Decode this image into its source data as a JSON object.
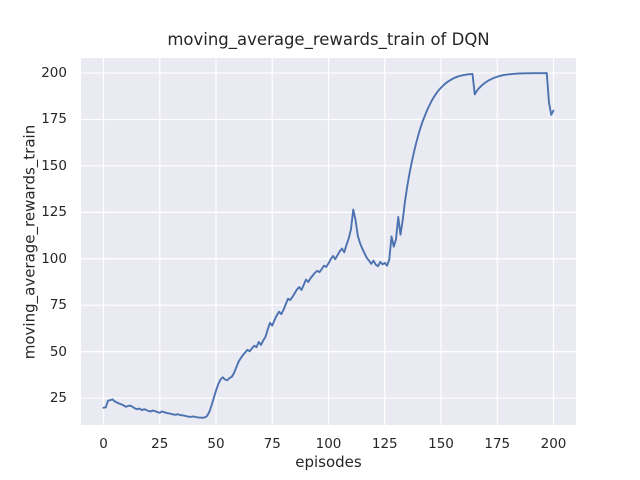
{
  "figure": {
    "background": "#ffffff",
    "text_color": "#262626"
  },
  "chart_data": {
    "type": "line",
    "title": "moving_average_rewards_train of DQN",
    "xlabel": "episodes",
    "ylabel": "moving_average_rewards_train",
    "grid": true,
    "legend_position": "none",
    "plot_background": "#eaeaf2",
    "grid_color": "#ffffff",
    "line_color": "#4c72b0",
    "xlim": [
      -10,
      210
    ],
    "ylim": [
      10.5,
      208.1
    ],
    "xticks": [
      0,
      25,
      50,
      75,
      100,
      125,
      150,
      175,
      200
    ],
    "yticks": [
      25,
      50,
      75,
      100,
      125,
      150,
      175,
      200
    ],
    "x_start": 0,
    "x_step": 1,
    "series": [
      {
        "name": "moving_average_rewards_train",
        "color": "#4c72b0",
        "values": [
          19.8,
          20.0,
          23.6,
          23.9,
          24.3,
          23.2,
          22.6,
          22.0,
          21.6,
          21.0,
          20.3,
          20.8,
          20.9,
          20.2,
          19.4,
          19.0,
          19.4,
          18.5,
          19.0,
          18.6,
          18.0,
          17.8,
          18.3,
          17.9,
          17.4,
          17.1,
          17.8,
          17.4,
          17.0,
          16.8,
          16.5,
          16.2,
          16.0,
          16.3,
          15.9,
          15.7,
          15.5,
          15.2,
          15.0,
          14.9,
          15.1,
          14.8,
          14.6,
          14.5,
          14.4,
          14.6,
          15.3,
          17.5,
          21.0,
          25.0,
          29.0,
          32.5,
          35.0,
          36.2,
          35.0,
          34.6,
          35.8,
          36.4,
          38.5,
          41.5,
          44.5,
          46.5,
          48.2,
          49.6,
          51.0,
          50.2,
          51.8,
          53.2,
          52.4,
          55.2,
          53.6,
          56.0,
          58.0,
          62.0,
          65.5,
          64.0,
          67.0,
          69.5,
          71.5,
          70.2,
          72.5,
          75.5,
          78.5,
          77.8,
          79.5,
          81.5,
          83.5,
          84.8,
          83.2,
          86.0,
          88.8,
          87.5,
          89.5,
          91.0,
          92.5,
          93.5,
          92.8,
          94.5,
          96.3,
          95.6,
          97.5,
          99.8,
          101.5,
          99.8,
          102.0,
          104.0,
          105.5,
          103.5,
          107.5,
          111.0,
          116.0,
          126.5,
          121.0,
          112.5,
          108.5,
          105.5,
          103.0,
          100.5,
          99.0,
          97.3,
          99.0,
          96.8,
          96.0,
          98.3,
          97.0,
          97.8,
          96.3,
          99.5,
          112.0,
          106.5,
          110.5,
          122.5,
          113.0,
          121.0,
          131.0,
          139.0,
          146.0,
          152.0,
          157.5,
          162.5,
          167.0,
          171.0,
          174.5,
          177.5,
          180.5,
          183.0,
          185.4,
          187.4,
          189.2,
          190.8,
          192.1,
          193.3,
          194.4,
          195.3,
          196.1,
          196.8,
          197.4,
          197.9,
          198.3,
          198.6,
          198.9,
          199.1,
          199.3,
          199.4,
          199.5,
          188.5,
          190.5,
          192.0,
          193.2,
          194.2,
          195.1,
          195.9,
          196.5,
          197.1,
          197.6,
          198.0,
          198.4,
          198.7,
          199.0,
          199.1,
          199.3,
          199.4,
          199.5,
          199.6,
          199.7,
          199.75,
          199.8,
          199.83,
          199.86,
          199.88,
          199.9,
          199.91,
          199.92,
          199.93,
          199.94,
          199.95,
          199.95,
          199.96,
          184.0,
          177.5,
          179.8
        ]
      }
    ]
  }
}
